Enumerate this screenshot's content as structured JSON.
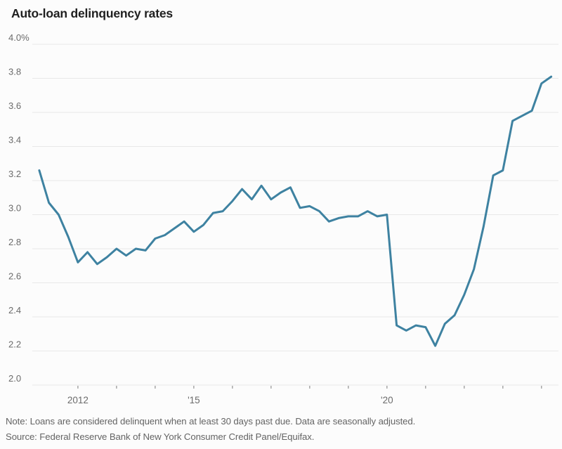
{
  "title": "Auto-loan delinquency rates",
  "note": "Note: Loans are considered delinquent when at least 30 days past due. Data are seasonally adjusted.",
  "source": "Source: Federal Reserve Bank of New York Consumer Credit Panel/Equifax.",
  "colors": {
    "line": "#3e82a1",
    "grid": "#e8e8e8",
    "axis_text": "#6b6b6b",
    "tick": "#9a9a9a",
    "title_text": "#1f1f1f",
    "note_text": "#646464",
    "background": "#fcfcfc"
  },
  "chart_data": {
    "type": "line",
    "title": "Auto-loan delinquency rates",
    "xlabel": "",
    "ylabel": "",
    "ylim": [
      2.0,
      4.0
    ],
    "xlim": [
      2010.82,
      2024.44
    ],
    "grid": true,
    "legend": "none",
    "y_ticks": [
      {
        "value": 4.0,
        "label": "4.0%"
      },
      {
        "value": 3.8,
        "label": "3.8"
      },
      {
        "value": 3.6,
        "label": "3.6"
      },
      {
        "value": 3.4,
        "label": "3.4"
      },
      {
        "value": 3.2,
        "label": "3.2"
      },
      {
        "value": 3.0,
        "label": "3.0"
      },
      {
        "value": 2.8,
        "label": "2.8"
      },
      {
        "value": 2.6,
        "label": "2.6"
      },
      {
        "value": 2.4,
        "label": "2.4"
      },
      {
        "value": 2.2,
        "label": "2.2"
      },
      {
        "value": 2.0,
        "label": "2.0"
      }
    ],
    "x_ticks": [
      {
        "value": 2012,
        "label": "2012"
      },
      {
        "value": 2013,
        "label": ""
      },
      {
        "value": 2014,
        "label": ""
      },
      {
        "value": 2015,
        "label": "'15"
      },
      {
        "value": 2016,
        "label": ""
      },
      {
        "value": 2017,
        "label": ""
      },
      {
        "value": 2018,
        "label": ""
      },
      {
        "value": 2019,
        "label": ""
      },
      {
        "value": 2020,
        "label": "'20"
      },
      {
        "value": 2021,
        "label": ""
      },
      {
        "value": 2022,
        "label": ""
      },
      {
        "value": 2023,
        "label": ""
      },
      {
        "value": 2024,
        "label": ""
      }
    ],
    "series": [
      {
        "name": "Auto-loan delinquency rate (%)",
        "x": [
          2011.0,
          2011.25,
          2011.5,
          2011.75,
          2012.0,
          2012.25,
          2012.5,
          2012.75,
          2013.0,
          2013.25,
          2013.5,
          2013.75,
          2014.0,
          2014.25,
          2014.5,
          2014.75,
          2015.0,
          2015.25,
          2015.5,
          2015.75,
          2016.0,
          2016.25,
          2016.5,
          2016.75,
          2017.0,
          2017.25,
          2017.5,
          2017.75,
          2018.0,
          2018.25,
          2018.5,
          2018.75,
          2019.0,
          2019.25,
          2019.5,
          2019.75,
          2020.0,
          2020.25,
          2020.5,
          2020.75,
          2021.0,
          2021.25,
          2021.5,
          2021.75,
          2022.0,
          2022.25,
          2022.5,
          2022.75,
          2023.0,
          2023.25,
          2023.5,
          2023.75,
          2024.0,
          2024.25
        ],
        "y": [
          3.26,
          3.07,
          3.0,
          2.87,
          2.72,
          2.78,
          2.71,
          2.75,
          2.8,
          2.76,
          2.8,
          2.79,
          2.86,
          2.88,
          2.92,
          2.96,
          2.9,
          2.94,
          3.01,
          3.02,
          3.08,
          3.15,
          3.09,
          3.17,
          3.09,
          3.13,
          3.16,
          3.04,
          3.05,
          3.02,
          2.96,
          2.98,
          2.99,
          2.99,
          3.02,
          2.99,
          3.0,
          2.35,
          2.32,
          2.35,
          2.34,
          2.23,
          2.36,
          2.41,
          2.53,
          2.68,
          2.93,
          3.23,
          3.26,
          3.55,
          3.58,
          3.61,
          3.77,
          3.81
        ]
      }
    ]
  }
}
